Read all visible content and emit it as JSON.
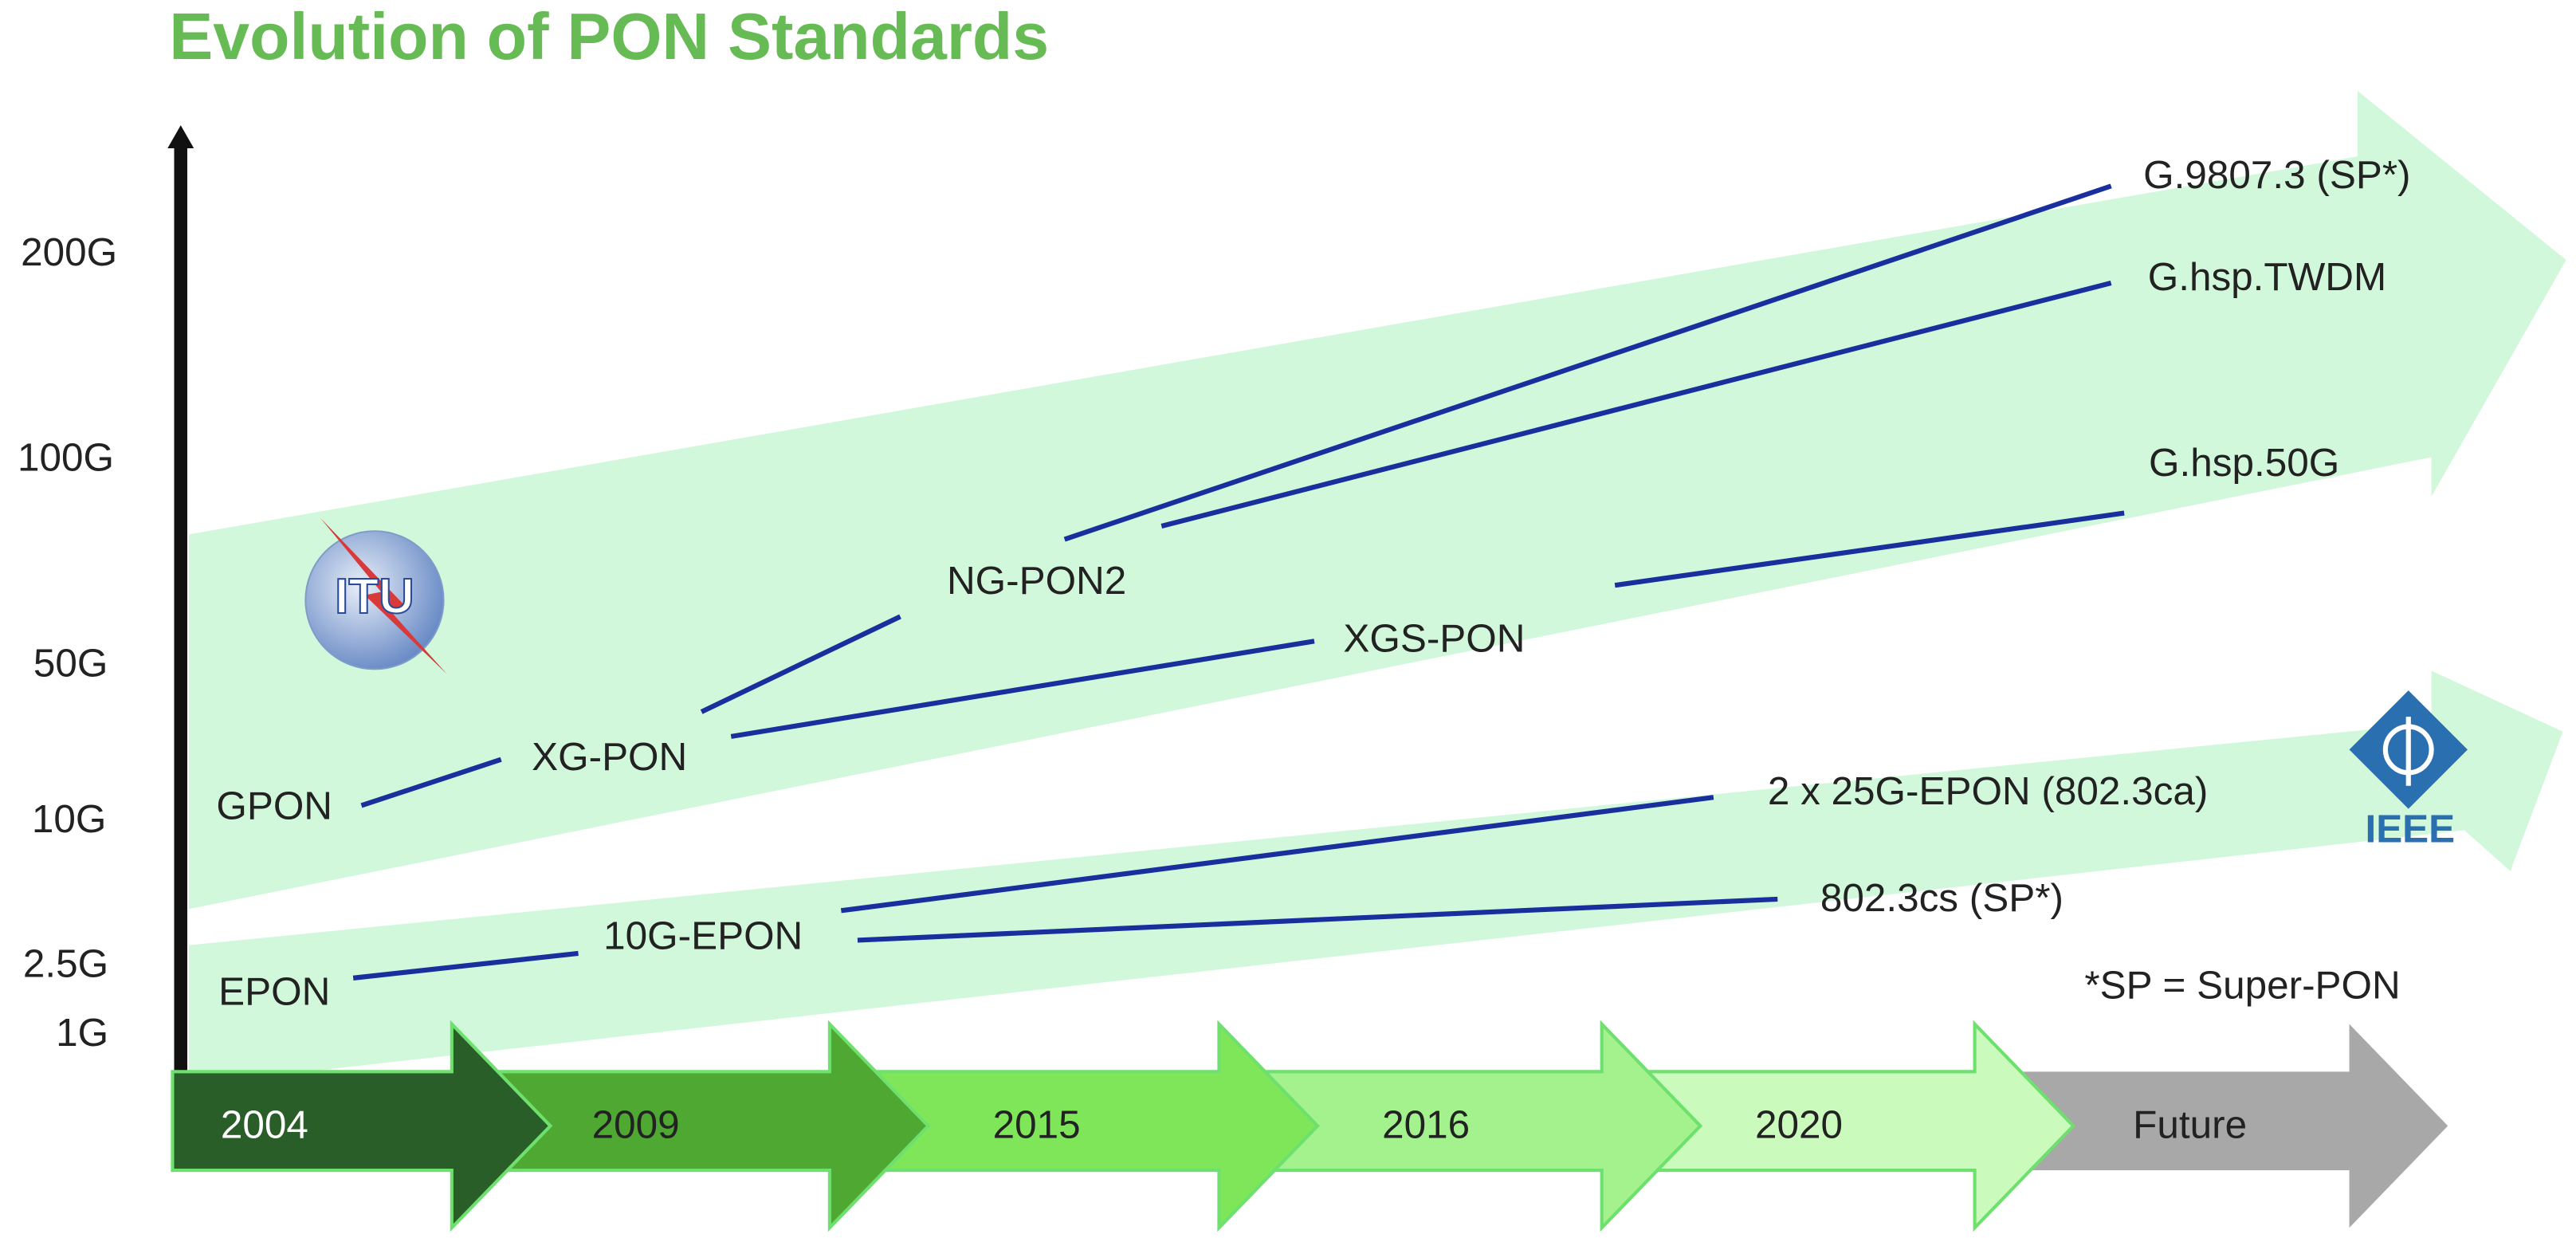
{
  "title": "Evolution of PON Standards",
  "speed_labels": [
    "200G",
    "100G",
    "50G",
    "10G",
    "2.5G",
    "1G"
  ],
  "standards": [
    {
      "label": "GPON"
    },
    {
      "label": "XG-PON"
    },
    {
      "label": "NG-PON2"
    },
    {
      "label": "XGS-PON"
    },
    {
      "label": "G.9807.3 (SP*)"
    },
    {
      "label": "G.hsp.TWDM"
    },
    {
      "label": "G.hsp.50G"
    },
    {
      "label": "EPON"
    },
    {
      "label": "10G-EPON"
    },
    {
      "label": "2 x 25G-EPON (802.3ca)"
    },
    {
      "label": "802.3cs (SP*)"
    }
  ],
  "timeline": [
    "2004",
    "2009",
    "2015",
    "2016",
    "2020",
    "Future"
  ],
  "footnote": "*SP = Super-PON",
  "logos": {
    "itu": "ITU",
    "ieee": "IEEE"
  }
}
